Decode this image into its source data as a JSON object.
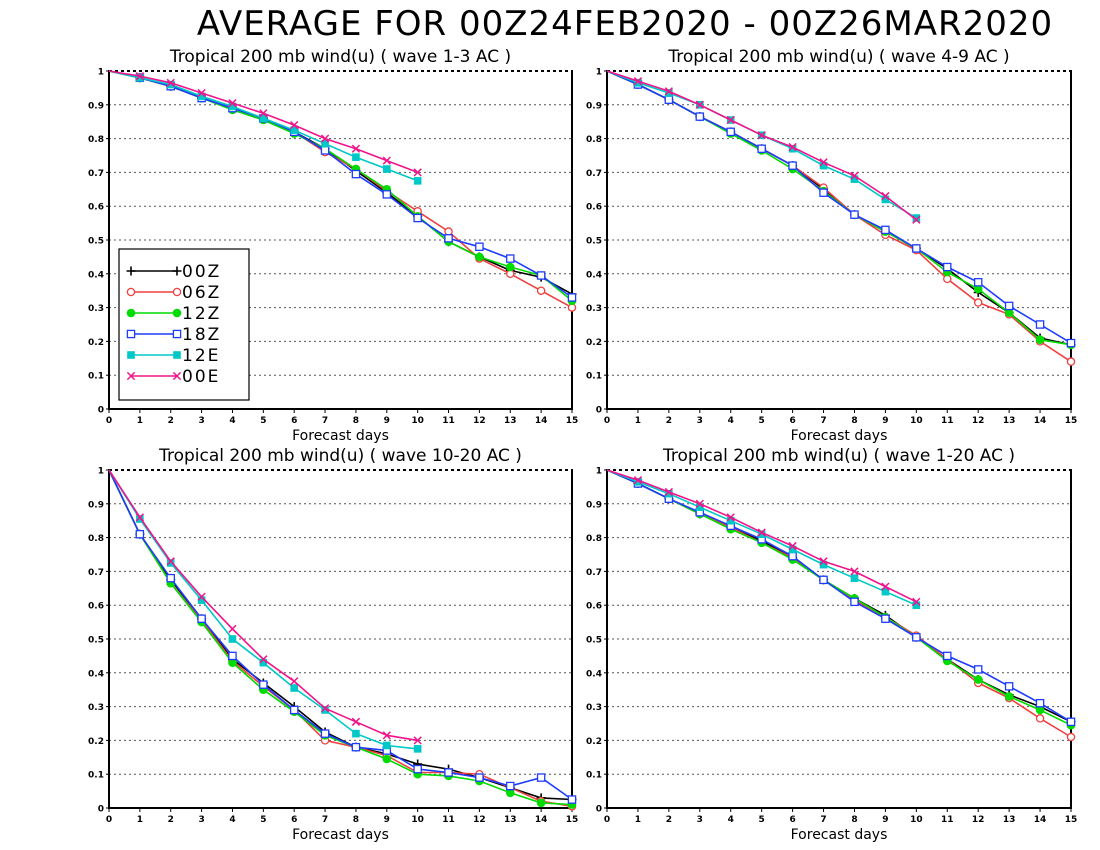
{
  "title": "AVERAGE FOR 00Z24FEB2020 - 00Z26MAR2020",
  "legend": {
    "entries": [
      {
        "label": "00Z",
        "color": "#000000",
        "marker": "plus"
      },
      {
        "label": "06Z",
        "color": "#f04040",
        "marker": "circle"
      },
      {
        "label": "12Z",
        "color": "#00dc00",
        "marker": "filled-circle"
      },
      {
        "label": "18Z",
        "color": "#1e3cff",
        "marker": "open-square"
      },
      {
        "label": "12E",
        "color": "#00c8c8",
        "marker": "filled-square"
      },
      {
        "label": "00E",
        "color": "#f0148c",
        "marker": "x"
      }
    ]
  },
  "chart_data": [
    {
      "type": "line",
      "title": "Tropical 200 mb wind(u) ( wave 1-3 AC )",
      "xlabel": "Forecast days",
      "ylabel": "",
      "xlim": [
        0,
        15
      ],
      "ylim": [
        0,
        1
      ],
      "x_ticks": [
        "0",
        "1",
        "2",
        "3",
        "4",
        "5",
        "6",
        "7",
        "8",
        "9",
        "10",
        "11",
        "12",
        "13",
        "14",
        "15"
      ],
      "y_ticks": [
        "0",
        "0.1",
        "0.2",
        "0.3",
        "0.4",
        "0.5",
        "0.6",
        "0.7",
        "0.8",
        "0.9",
        "1"
      ],
      "grid": "horizontal dotted",
      "legend_position": "lower-left",
      "series": [
        {
          "name": "00Z",
          "values": [
            1,
            0.98,
            0.955,
            0.92,
            0.89,
            0.86,
            0.82,
            0.77,
            0.705,
            0.64,
            0.57,
            0.495,
            0.45,
            0.41,
            0.39,
            0.34
          ]
        },
        {
          "name": "06Z",
          "values": [
            1,
            0.98,
            0.955,
            0.92,
            0.89,
            0.86,
            0.82,
            0.76,
            0.71,
            0.645,
            0.585,
            0.525,
            0.445,
            0.4,
            0.35,
            0.3
          ]
        },
        {
          "name": "12Z",
          "values": [
            1,
            0.98,
            0.955,
            0.92,
            0.885,
            0.855,
            0.815,
            0.77,
            0.71,
            0.65,
            0.57,
            0.495,
            0.45,
            0.42,
            0.395,
            0.32
          ]
        },
        {
          "name": "18Z",
          "values": [
            1,
            0.98,
            0.955,
            0.92,
            0.89,
            0.86,
            0.82,
            0.765,
            0.695,
            0.635,
            0.565,
            0.505,
            0.48,
            0.445,
            0.395,
            0.33
          ]
        },
        {
          "name": "12E",
          "values": [
            1,
            0.98,
            0.96,
            0.925,
            0.895,
            0.86,
            0.825,
            0.785,
            0.745,
            0.71,
            0.675
          ]
        },
        {
          "name": "00E",
          "values": [
            1,
            0.985,
            0.965,
            0.935,
            0.905,
            0.875,
            0.84,
            0.8,
            0.77,
            0.735,
            0.7
          ]
        }
      ]
    },
    {
      "type": "line",
      "title": "Tropical 200 mb wind(u) ( wave 4-9 AC )",
      "xlabel": "Forecast days",
      "ylabel": "",
      "xlim": [
        0,
        15
      ],
      "ylim": [
        0,
        1
      ],
      "x_ticks": [
        "0",
        "1",
        "2",
        "3",
        "4",
        "5",
        "6",
        "7",
        "8",
        "9",
        "10",
        "11",
        "12",
        "13",
        "14",
        "15"
      ],
      "y_ticks": [
        "0",
        "0.1",
        "0.2",
        "0.3",
        "0.4",
        "0.5",
        "0.6",
        "0.7",
        "0.8",
        "0.9",
        "1"
      ],
      "grid": "horizontal dotted",
      "series": [
        {
          "name": "00Z",
          "values": [
            1,
            0.96,
            0.915,
            0.865,
            0.82,
            0.77,
            0.72,
            0.65,
            0.575,
            0.525,
            0.475,
            0.415,
            0.345,
            0.285,
            0.21,
            0.19
          ]
        },
        {
          "name": "06Z",
          "values": [
            1,
            0.96,
            0.915,
            0.865,
            0.82,
            0.77,
            0.72,
            0.655,
            0.575,
            0.515,
            0.47,
            0.385,
            0.315,
            0.28,
            0.2,
            0.14
          ]
        },
        {
          "name": "12Z",
          "values": [
            1,
            0.96,
            0.915,
            0.865,
            0.815,
            0.765,
            0.71,
            0.645,
            0.575,
            0.525,
            0.475,
            0.405,
            0.355,
            0.285,
            0.205,
            0.19
          ]
        },
        {
          "name": "18Z",
          "values": [
            1,
            0.96,
            0.915,
            0.865,
            0.82,
            0.77,
            0.72,
            0.64,
            0.575,
            0.53,
            0.475,
            0.42,
            0.375,
            0.305,
            0.25,
            0.195
          ]
        },
        {
          "name": "12E",
          "values": [
            1,
            0.965,
            0.935,
            0.9,
            0.855,
            0.81,
            0.77,
            0.72,
            0.68,
            0.62,
            0.565
          ]
        },
        {
          "name": "00E",
          "values": [
            1,
            0.97,
            0.94,
            0.9,
            0.855,
            0.81,
            0.775,
            0.73,
            0.69,
            0.63,
            0.56
          ]
        }
      ]
    },
    {
      "type": "line",
      "title": "Tropical 200 mb wind(u) ( wave 10-20 AC )",
      "xlabel": "Forecast days",
      "ylabel": "",
      "xlim": [
        0,
        15
      ],
      "ylim": [
        0,
        1
      ],
      "x_ticks": [
        "0",
        "1",
        "2",
        "3",
        "4",
        "5",
        "6",
        "7",
        "8",
        "9",
        "10",
        "11",
        "12",
        "13",
        "14",
        "15"
      ],
      "y_ticks": [
        "0",
        "0.1",
        "0.2",
        "0.3",
        "0.4",
        "0.5",
        "0.6",
        "0.7",
        "0.8",
        "0.9",
        "1"
      ],
      "grid": "horizontal dotted",
      "series": [
        {
          "name": "00Z",
          "values": [
            1,
            0.81,
            0.675,
            0.56,
            0.44,
            0.37,
            0.3,
            0.225,
            0.18,
            0.16,
            0.13,
            0.115,
            0.09,
            0.06,
            0.03,
            0.025
          ]
        },
        {
          "name": "06Z",
          "values": [
            1,
            0.81,
            0.665,
            0.555,
            0.435,
            0.36,
            0.29,
            0.2,
            0.18,
            0.155,
            0.105,
            0.105,
            0.1,
            0.06,
            0.02,
            0.005
          ]
        },
        {
          "name": "12Z",
          "values": [
            1,
            0.81,
            0.665,
            0.55,
            0.43,
            0.35,
            0.285,
            0.215,
            0.18,
            0.145,
            0.1,
            0.095,
            0.08,
            0.045,
            0.015,
            0.01
          ]
        },
        {
          "name": "18Z",
          "values": [
            1,
            0.81,
            0.68,
            0.56,
            0.45,
            0.365,
            0.29,
            0.22,
            0.18,
            0.17,
            0.115,
            0.105,
            0.09,
            0.065,
            0.09,
            0.025
          ]
        },
        {
          "name": "12E",
          "values": [
            1,
            0.855,
            0.725,
            0.615,
            0.5,
            0.43,
            0.355,
            0.29,
            0.22,
            0.185,
            0.175
          ]
        },
        {
          "name": "00E",
          "values": [
            1,
            0.86,
            0.73,
            0.625,
            0.53,
            0.44,
            0.375,
            0.295,
            0.255,
            0.215,
            0.2
          ]
        }
      ]
    },
    {
      "type": "line",
      "title": "Tropical 200 mb wind(u) ( wave 1-20 AC )",
      "xlabel": "Forecast days",
      "ylabel": "",
      "xlim": [
        0,
        15
      ],
      "ylim": [
        0,
        1
      ],
      "x_ticks": [
        "0",
        "1",
        "2",
        "3",
        "4",
        "5",
        "6",
        "7",
        "8",
        "9",
        "10",
        "11",
        "12",
        "13",
        "14",
        "15"
      ],
      "y_ticks": [
        "0",
        "0.1",
        "0.2",
        "0.3",
        "0.4",
        "0.5",
        "0.6",
        "0.7",
        "0.8",
        "0.9",
        "1"
      ],
      "grid": "horizontal dotted",
      "series": [
        {
          "name": "00Z",
          "values": [
            1,
            0.96,
            0.915,
            0.87,
            0.83,
            0.79,
            0.74,
            0.675,
            0.62,
            0.57,
            0.505,
            0.44,
            0.38,
            0.335,
            0.3,
            0.255
          ]
        },
        {
          "name": "06Z",
          "values": [
            1,
            0.96,
            0.915,
            0.87,
            0.83,
            0.785,
            0.74,
            0.675,
            0.615,
            0.565,
            0.51,
            0.44,
            0.37,
            0.325,
            0.265,
            0.21
          ]
        },
        {
          "name": "12Z",
          "values": [
            1,
            0.96,
            0.915,
            0.87,
            0.825,
            0.785,
            0.735,
            0.675,
            0.62,
            0.565,
            0.505,
            0.435,
            0.38,
            0.33,
            0.29,
            0.245
          ]
        },
        {
          "name": "18Z",
          "values": [
            1,
            0.96,
            0.915,
            0.875,
            0.835,
            0.795,
            0.745,
            0.675,
            0.61,
            0.56,
            0.505,
            0.45,
            0.41,
            0.36,
            0.31,
            0.255
          ]
        },
        {
          "name": "12E",
          "values": [
            1,
            0.965,
            0.93,
            0.89,
            0.85,
            0.81,
            0.765,
            0.72,
            0.68,
            0.64,
            0.6
          ]
        },
        {
          "name": "00E",
          "values": [
            1,
            0.97,
            0.935,
            0.9,
            0.86,
            0.815,
            0.775,
            0.73,
            0.7,
            0.655,
            0.61
          ]
        }
      ]
    }
  ]
}
